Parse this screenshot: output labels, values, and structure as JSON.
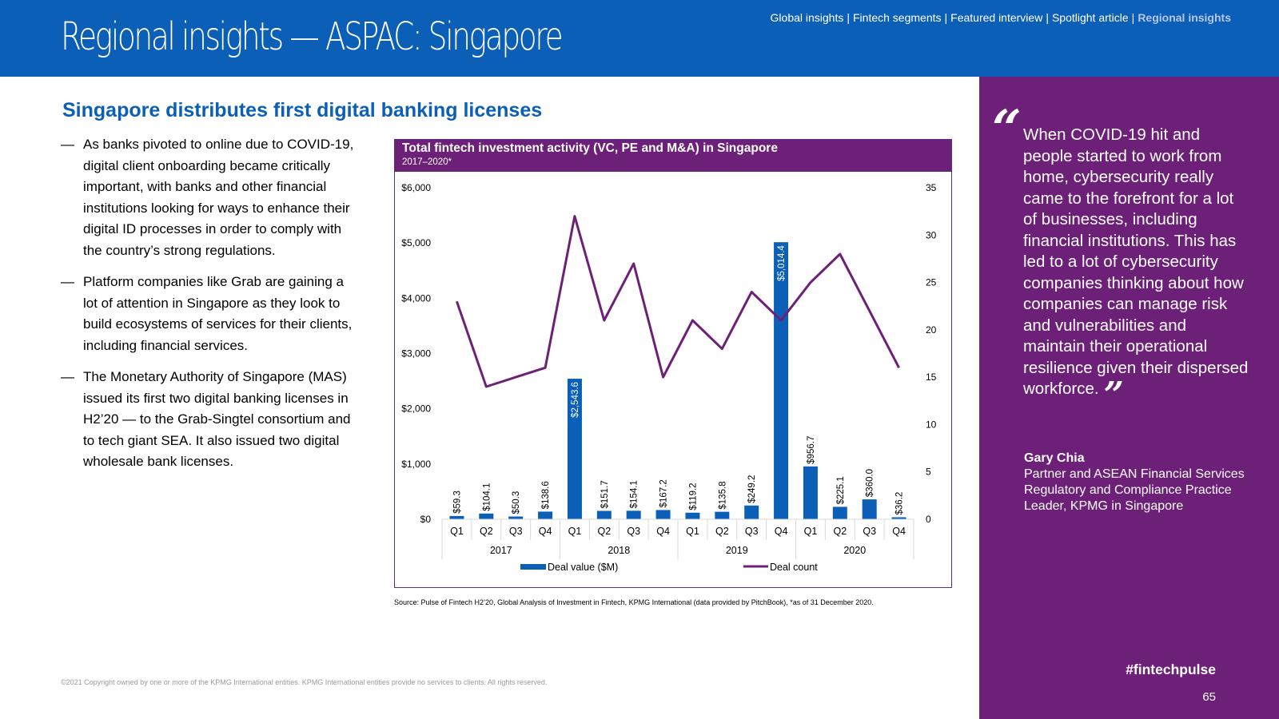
{
  "header": {
    "title": "Regional insights — ASPAC: Singapore",
    "nav": [
      {
        "label": "Global insights",
        "active": false
      },
      {
        "label": "Fintech segments",
        "active": false
      },
      {
        "label": "Featured interview",
        "active": false
      },
      {
        "label": "Spotlight article",
        "active": false
      },
      {
        "label": "Regional insights",
        "active": true
      }
    ],
    "nav_separator": "|"
  },
  "main": {
    "section_title": "Singapore distributes first digital banking licenses",
    "bullet_dash": "—",
    "bullets": [
      "As banks pivoted to online due to COVID-19, digital client onboarding became critically important, with banks and other financial institutions looking for ways to enhance their digital ID processes in order to comply with the country’s strong regulations.",
      "Platform companies like Grab are gaining a lot of attention in Singapore as they look to build ecosystems of services for their clients, including financial services.",
      "The Monetary Authority of Singapore (MAS) issued its first two digital banking licenses in H2’20 — to the Grab-Singtel consortium and to tech giant SEA. It also issued two digital wholesale bank licenses."
    ]
  },
  "chart_data": {
    "type": "bar",
    "title": "Total fintech investment activity (VC, PE and M&A) in Singapore",
    "subtitle": "2017–2020*",
    "categories": [
      "Q1",
      "Q2",
      "Q3",
      "Q4",
      "Q1",
      "Q2",
      "Q3",
      "Q4",
      "Q1",
      "Q2",
      "Q3",
      "Q4",
      "Q1",
      "Q2",
      "Q3",
      "Q4"
    ],
    "groups": [
      {
        "label": "2017",
        "count": 4
      },
      {
        "label": "2018",
        "count": 4
      },
      {
        "label": "2019",
        "count": 4
      },
      {
        "label": "2020",
        "count": 4
      }
    ],
    "series": [
      {
        "name": "Deal value ($M)",
        "type": "bar",
        "axis": "left",
        "color": "#0B5FB7",
        "values": [
          59.3,
          104.1,
          50.3,
          138.6,
          2543.6,
          151.7,
          154.1,
          167.2,
          119.2,
          135.8,
          249.2,
          5014.4,
          956.7,
          225.1,
          360.0,
          36.2
        ],
        "labels": [
          "$59.3",
          "$104.1",
          "$50.3",
          "$138.6",
          "$2,543.6",
          "$151.7",
          "$154.1",
          "$167.2",
          "$119.2",
          "$135.8",
          "$249.2",
          "$5,014.4",
          "$956.7",
          "$225.1",
          "$360.0",
          "$36.2"
        ]
      },
      {
        "name": "Deal count",
        "type": "line",
        "axis": "right",
        "color": "#6D2077",
        "values": [
          23,
          14,
          15,
          16,
          32,
          21,
          27,
          15,
          21,
          18,
          24,
          21,
          25,
          28,
          22,
          16
        ]
      }
    ],
    "y_left": {
      "ticks": [
        "$0",
        "$1,000",
        "$2,000",
        "$3,000",
        "$4,000",
        "$5,000",
        "$6,000"
      ],
      "range": [
        0,
        6000
      ]
    },
    "y_right": {
      "ticks": [
        "0",
        "5",
        "10",
        "15",
        "20",
        "25",
        "30",
        "35"
      ],
      "range": [
        0,
        35
      ]
    },
    "grid": false,
    "legend_position": "bottom"
  },
  "footer": {
    "source": "Source: Pulse of Fintech H2’20, Global Analysis of Investment in Fintech, KPMG International (data provided by PitchBook), *as of 31 December 2020.",
    "copyright": "©2021 Copyright owned by one or more of the KPMG International entities. KPMG International entities provide no services to clients. All rights reserved."
  },
  "sidebar": {
    "open_quote": "“",
    "quote": "When COVID-19 hit and people started to work from home, cybersecurity really came to the forefront for a lot of businesses, including financial institutions. This has led to a lot of cybersecurity companies thinking about how companies can manage risk and vulnerabilities and maintain their operational resilience given their dispersed workforce.",
    "close_quote": "”",
    "person_name": "Gary Chia",
    "person_title": "Partner and ASEAN Financial Services Regulatory and Compliance Practice Leader, KPMG in Singapore",
    "hashtag": "#fintechpulse",
    "page_number": "65"
  },
  "colors": {
    "brand_blue": "#0B5FB7",
    "brand_purple": "#6D2077"
  }
}
